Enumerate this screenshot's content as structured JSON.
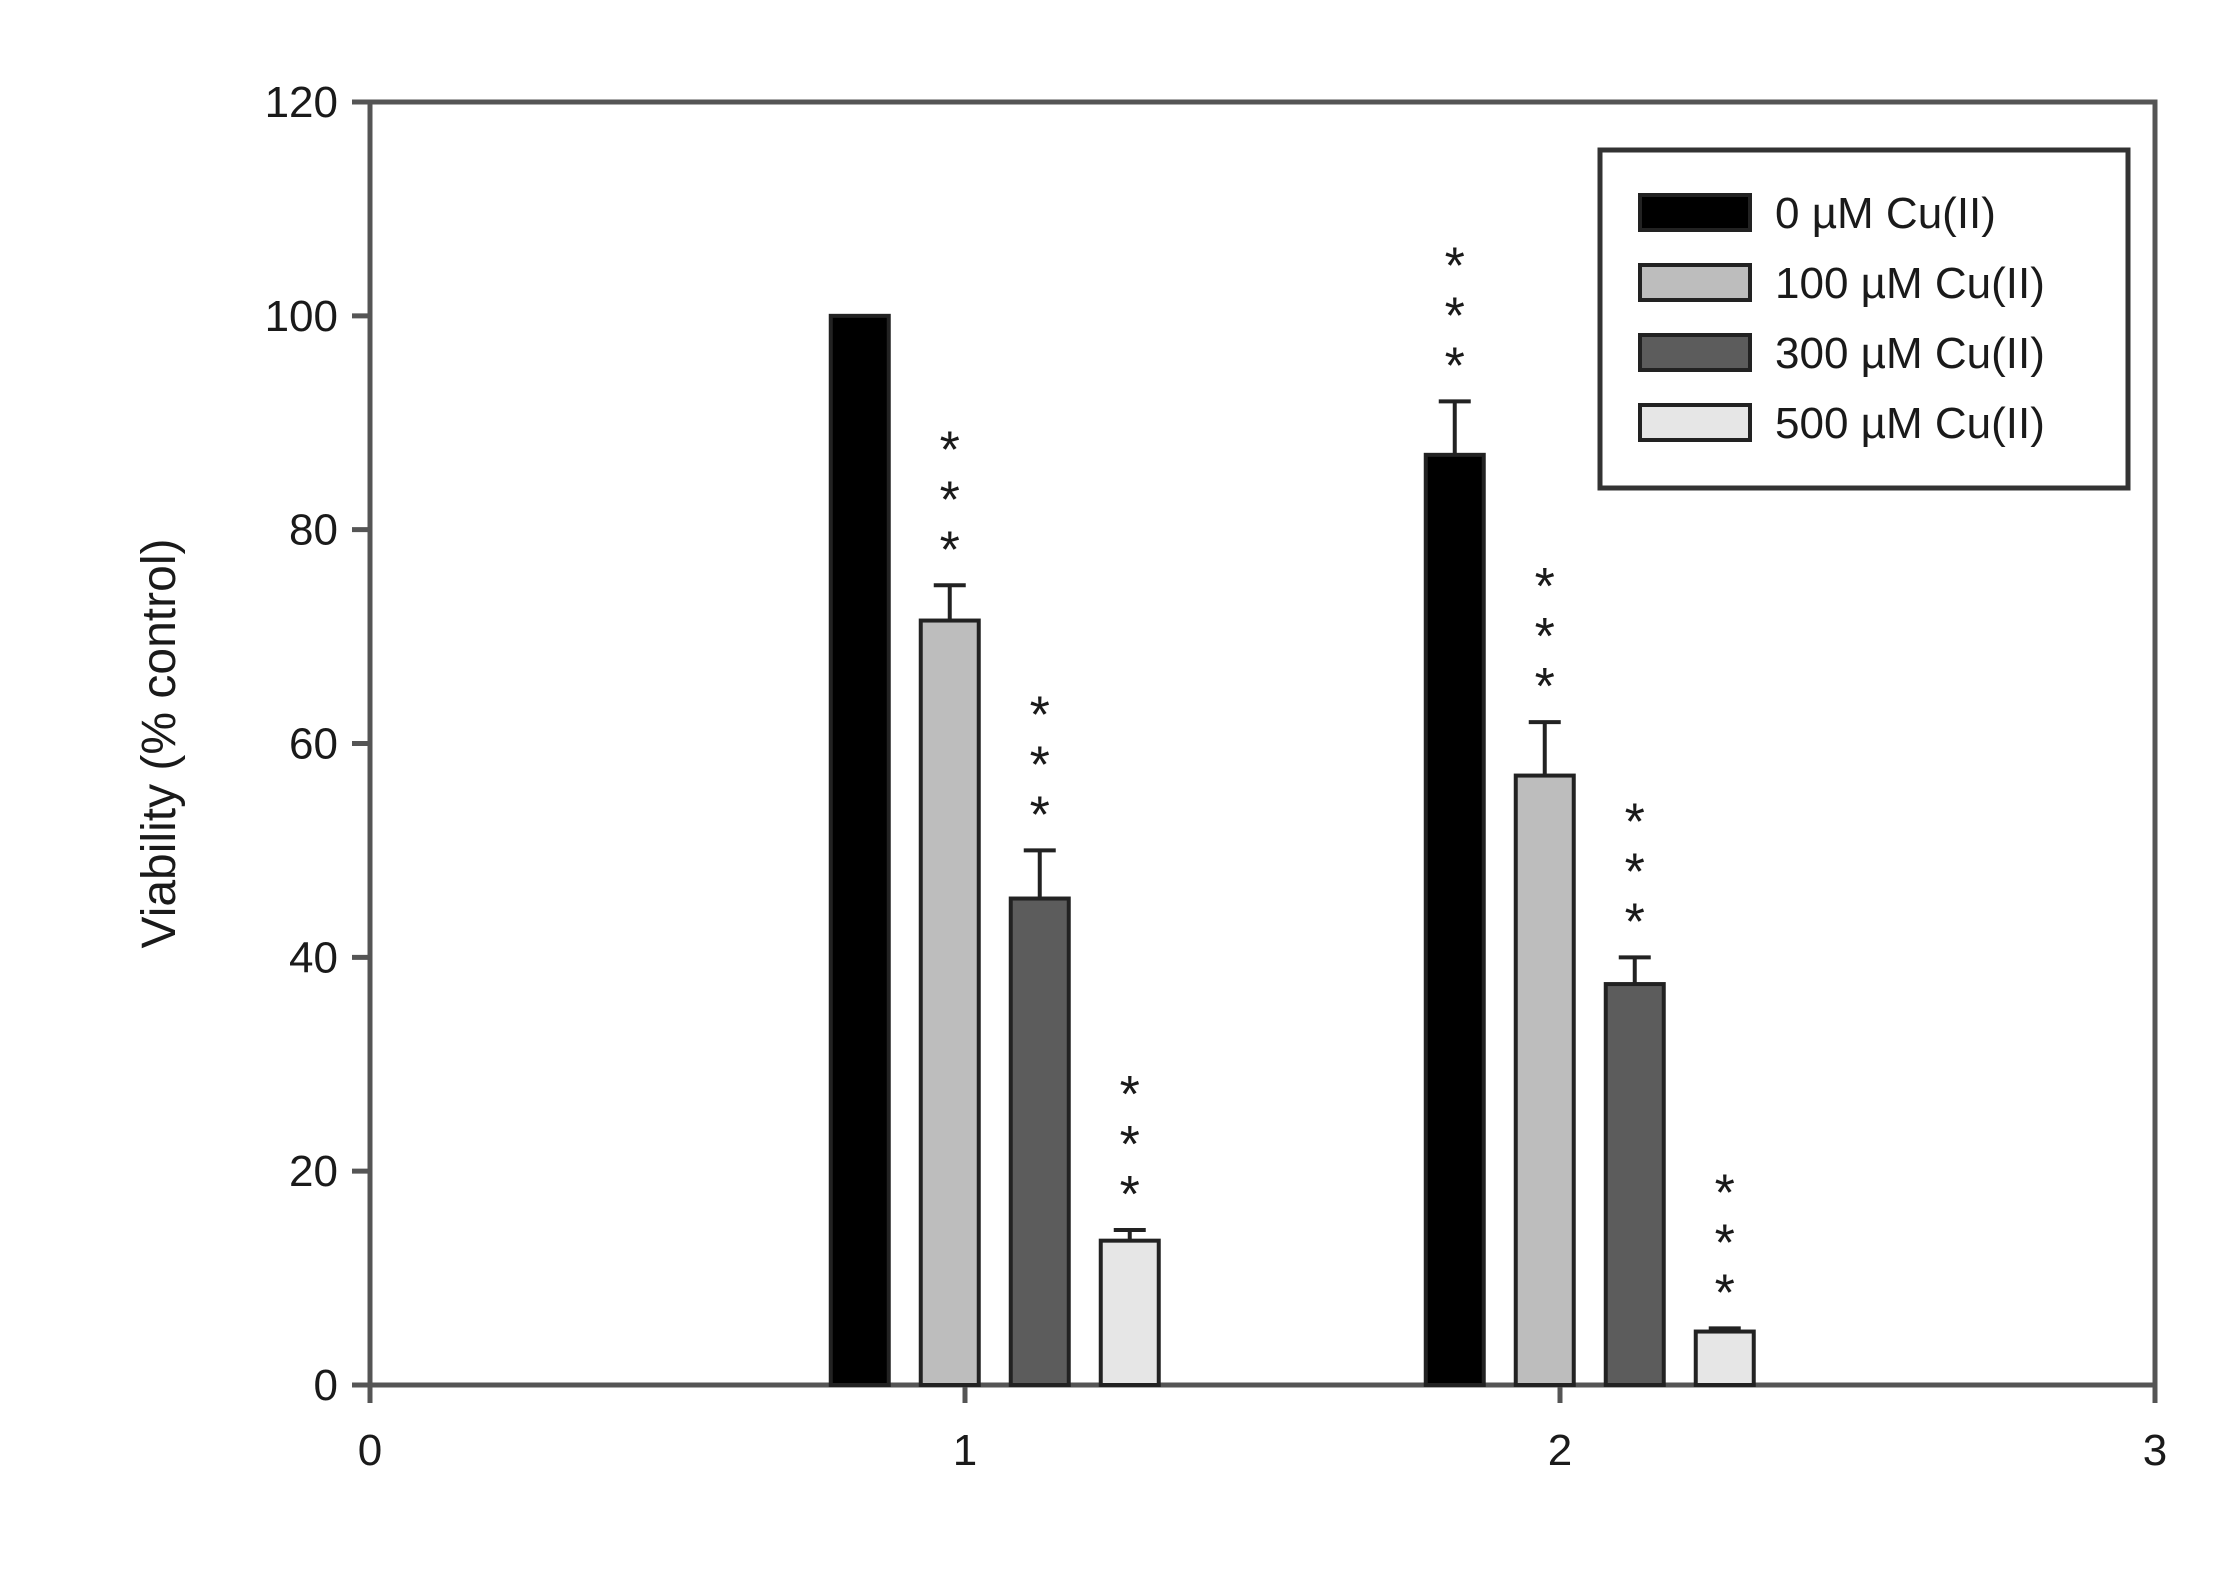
{
  "chart_data": {
    "type": "bar",
    "title": "",
    "xlabel": "",
    "ylabel": "Viability (% control)",
    "xlim": [
      0,
      3
    ],
    "ylim": [
      0,
      120
    ],
    "x_ticks": [
      "0",
      "1",
      "2",
      "3"
    ],
    "y_ticks": [
      "0",
      "20",
      "40",
      "60",
      "80",
      "100",
      "120"
    ],
    "grid": false,
    "legend_position": "top-right",
    "groups": [
      1,
      2
    ],
    "series": [
      {
        "name": "0 µM Cu(II)",
        "color": "#000000",
        "values": [
          100,
          87
        ],
        "errors": [
          0,
          5
        ],
        "significance": [
          "",
          "***"
        ]
      },
      {
        "name": "100 µM Cu(II)",
        "color": "#bdbdbd",
        "values": [
          71.5,
          57
        ],
        "errors": [
          3.3,
          5
        ],
        "significance": [
          "***",
          "***"
        ]
      },
      {
        "name": "300 µM Cu(II)",
        "color": "#5c5c5c",
        "values": [
          45.5,
          37.5
        ],
        "errors": [
          4.5,
          2.5
        ],
        "significance": [
          "***",
          "***"
        ]
      },
      {
        "name": "500 µM Cu(II)",
        "color": "#e6e6e6",
        "values": [
          13.5,
          5
        ],
        "errors": [
          1,
          0.3
        ],
        "significance": [
          "***",
          "***"
        ]
      }
    ]
  }
}
